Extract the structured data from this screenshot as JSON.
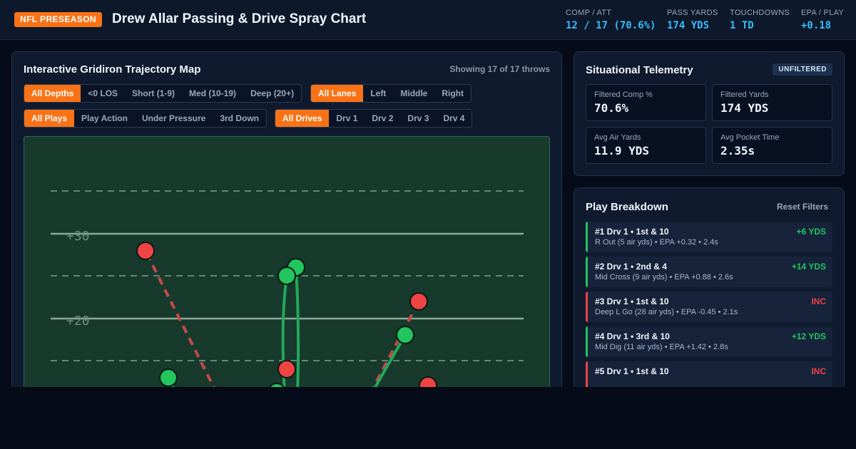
{
  "header": {
    "badge": "NFL PRESEASON",
    "title": "Drew Allar Passing & Drive Spray Chart",
    "stats": [
      {
        "label": "COMP / ATT",
        "value": "12 / 17 (70.6%)"
      },
      {
        "label": "PASS YARDS",
        "value": "174 YDS"
      },
      {
        "label": "TOUCHDOWNS",
        "value": "1 TD"
      },
      {
        "label": "EPA / PLAY",
        "value": "+0.18"
      }
    ]
  },
  "map": {
    "title": "Interactive Gridiron Trajectory Map",
    "showing": "Showing 17 of 17 throws",
    "depth_filters": [
      "All Depths",
      "<0 LOS",
      "Short (1-9)",
      "Med (10-19)",
      "Deep (20+)"
    ],
    "lane_filters": [
      "All Lanes",
      "Left",
      "Middle",
      "Right"
    ],
    "play_filters": [
      "All Plays",
      "Play Action",
      "Under Pressure",
      "3rd Down"
    ],
    "drive_filters": [
      "All Drives",
      "Drv 1",
      "Drv 2",
      "Drv 3",
      "Drv 4"
    ],
    "yard_labels": [
      "+30",
      "+20"
    ],
    "colors": {
      "complete": "#22c55e",
      "incomplete": "#ef4444",
      "field": "#173a2c"
    }
  },
  "telemetry": {
    "title": "Situational Telemetry",
    "badge": "UNFILTERED",
    "cards": [
      {
        "label": "Filtered Comp %",
        "value": "70.6%"
      },
      {
        "label": "Filtered Yards",
        "value": "174 YDS"
      },
      {
        "label": "Avg Air Yards",
        "value": "11.9 YDS"
      },
      {
        "label": "Avg Pocket Time",
        "value": "2.35s"
      }
    ]
  },
  "breakdown": {
    "title": "Play Breakdown",
    "reset": "Reset Filters",
    "plays": [
      {
        "header": "#1 Drv 1 • 1st & 10",
        "result": "+6 YDS",
        "detail": "R Out (5 air yds) • EPA +0.32 • 2.4s",
        "complete": true
      },
      {
        "header": "#2 Drv 1 • 2nd & 4",
        "result": "+14 YDS",
        "detail": "Mid Cross (9 air yds) • EPA +0.88 • 2.6s",
        "complete": true
      },
      {
        "header": "#3 Drv 1 • 1st & 10",
        "result": "INC",
        "detail": "Deep L Go (28 air yds) • EPA -0.45 • 2.1s",
        "complete": false
      },
      {
        "header": "#4 Drv 1 • 3rd & 10",
        "result": "+12 YDS",
        "detail": "Mid Dig (11 air yds) • EPA +1.42 • 2.8s",
        "complete": true
      },
      {
        "header": "#5 Drv 1 • 1st & 10",
        "result": "INC",
        "detail": "",
        "complete": false
      }
    ]
  }
}
